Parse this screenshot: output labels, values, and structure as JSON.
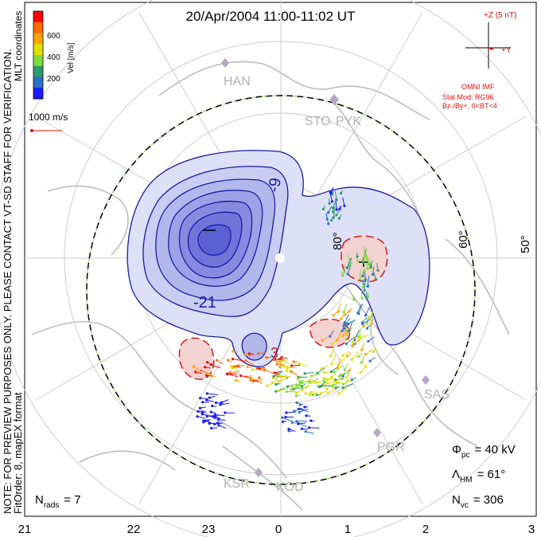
{
  "title": "20/Apr/2004 11:00-11:02 UT",
  "side_note": "NOTE: FOR PREVIEW PURPOSES ONLY. PLEASE CONTACT VT-SD STAFF FOR VERIFICATION.",
  "fit_order": "FitOrder: 8, mapEX format",
  "coord_label": "MLT coordinates",
  "colorbar": {
    "title": "Vel [m/s]",
    "ticks": [
      "600",
      "400",
      "200"
    ],
    "colors": [
      "#ff0000",
      "#ff6a00",
      "#ffa500",
      "#e0e000",
      "#7fdc3a",
      "#2e9a6a",
      "#2a72c8",
      "#1a1aff"
    ]
  },
  "scale_label": "1000 m/s",
  "imf": {
    "z_label": "+Z (5 nT)",
    "y_label": "+Y",
    "source": "OMNI IMF",
    "model_line1": "Stat Mod: RG96",
    "model_line2": "Bz-/By+, 0<BT<4"
  },
  "contours": {
    "neg_label": "-21",
    "neg_label2": "-9",
    "pos_label": "3"
  },
  "lat_labels": [
    "80°",
    "60°",
    "50°"
  ],
  "stations": [
    "HAN",
    "STO",
    "PYK",
    "SAS",
    "PGR",
    "KSR",
    "KOD"
  ],
  "stats": {
    "phi_sym": "Φ",
    "phi_sub": "pc",
    "phi_val": "= 40 kV",
    "lam_sym": "Λ",
    "lam_sub": "HM",
    "lam_val": "= 61°",
    "nvc_sym": "N",
    "nvc_sub": "vc",
    "nvc_val": "= 306",
    "nrads_sym": "N",
    "nrads_sub": "rads",
    "nrads_val": "= 7"
  },
  "mlt_ticks": [
    "21",
    "22",
    "23",
    "0",
    "1",
    "2",
    "3"
  ],
  "colors": {
    "negative": "#1a1aa8",
    "positive": "#c81e1e",
    "negfill": "#6f74e0",
    "posfill": "#f3d2d2",
    "coast": "#b8b8b8",
    "grid": "#cfcfcf",
    "imf": "#e01010"
  }
}
